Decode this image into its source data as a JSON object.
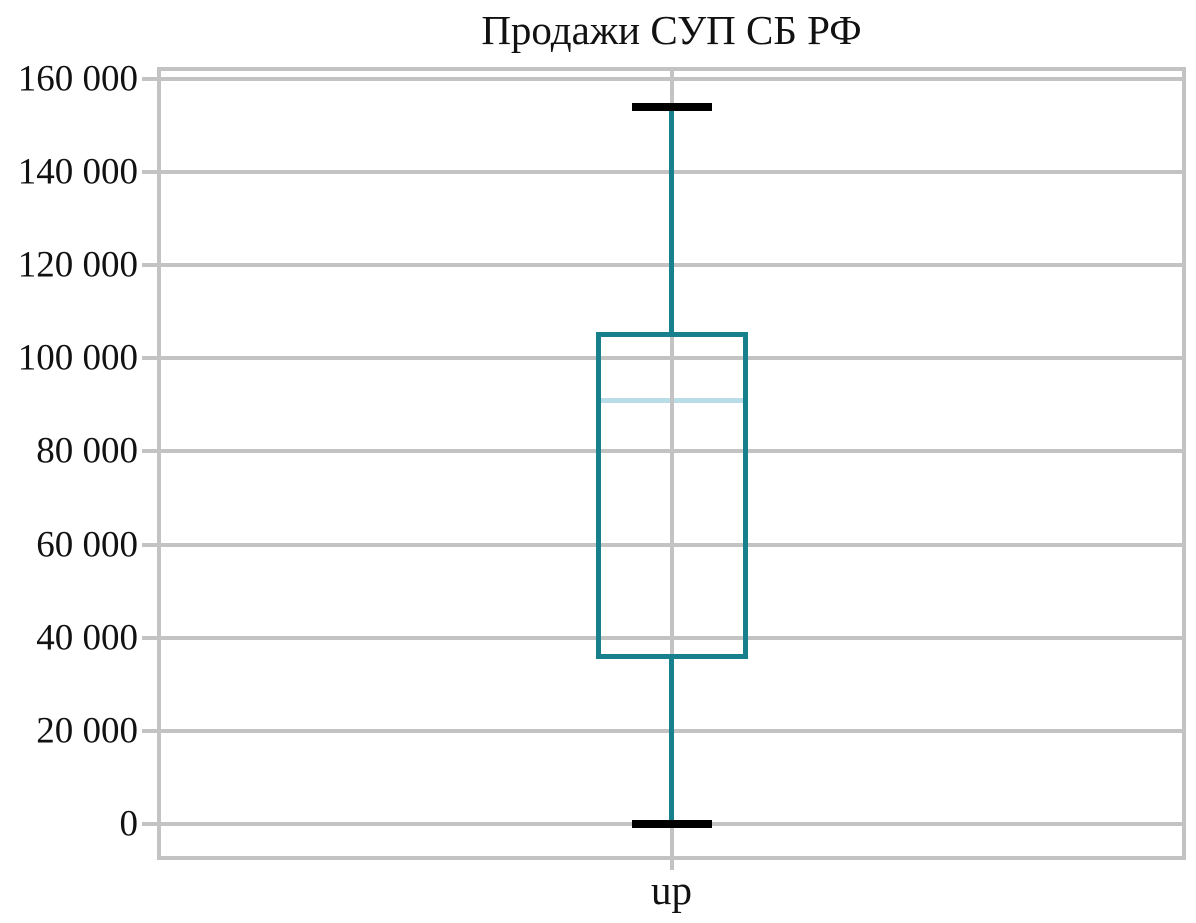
{
  "title": "Продажи СУП СБ РФ",
  "colors": {
    "background": "#ffffff",
    "grid": "#c3c3c3",
    "box_border": "#16808c",
    "whisker": "#16808c",
    "median": "#b8dde7",
    "cap": "#000000",
    "text": "#111111"
  },
  "chart_data": {
    "type": "boxplot",
    "title": "Продажи СУП СБ РФ",
    "categories": [
      "up"
    ],
    "series": [
      {
        "name": "up",
        "min": 0,
        "q1": 35500,
        "median": 91000,
        "q3": 105700,
        "max": 154000
      }
    ],
    "xlabel": "",
    "ylabel": "",
    "ylim": [
      -6900,
      161700
    ],
    "yticks": [
      0,
      20000,
      40000,
      60000,
      80000,
      100000,
      120000,
      140000,
      160000
    ],
    "ytick_labels": [
      "0",
      "20 000",
      "40 000",
      "60 000",
      "80 000",
      "100 000",
      "120 000",
      "140 000",
      "160 000"
    ],
    "grid": "horizontal gridlines + category center line, gray, framed plot area",
    "legend": "none"
  }
}
